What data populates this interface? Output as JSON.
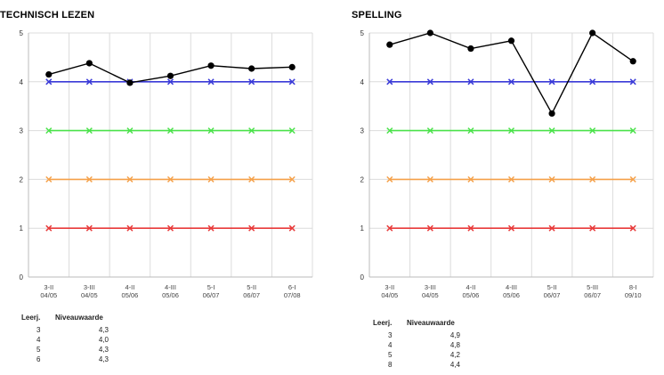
{
  "chart_data": [
    {
      "type": "line",
      "title": "TECHNISCH LEZEN",
      "categories": [
        [
          "3-II",
          "04/05"
        ],
        [
          "3-III",
          "04/05"
        ],
        [
          "4-II",
          "05/06"
        ],
        [
          "4-III",
          "05/06"
        ],
        [
          "5-I",
          "06/07"
        ],
        [
          "5-II",
          "06/07"
        ],
        [
          "6-I",
          "07/08"
        ]
      ],
      "ylim": [
        0,
        5
      ],
      "yticks": [
        0,
        1,
        2,
        3,
        4,
        5
      ],
      "grid": true,
      "series": [
        {
          "values": [
            4.15,
            4.38,
            3.98,
            4.12,
            4.33,
            4.27,
            4.3
          ],
          "color": "#000000",
          "marker": "dot"
        },
        {
          "values": [
            4,
            4,
            4,
            4,
            4,
            4,
            4
          ],
          "color": "#3a3ad8",
          "marker": "x"
        },
        {
          "values": [
            3,
            3,
            3,
            3,
            3,
            3,
            3
          ],
          "color": "#4ae24a",
          "marker": "x"
        },
        {
          "values": [
            2,
            2,
            2,
            2,
            2,
            2,
            2
          ],
          "color": "#f5a14a",
          "marker": "x"
        },
        {
          "values": [
            1,
            1,
            1,
            1,
            1,
            1,
            1
          ],
          "color": "#e83a3a",
          "marker": "x"
        }
      ],
      "table": {
        "headers": [
          "Leerj.",
          "Niveauwaarde"
        ],
        "rows": [
          [
            "3",
            "4,3"
          ],
          [
            "4",
            "4,0"
          ],
          [
            "5",
            "4,3"
          ],
          [
            "6",
            "4,3"
          ]
        ]
      }
    },
    {
      "type": "line",
      "title": "SPELLING",
      "categories": [
        [
          "3-II",
          "04/05"
        ],
        [
          "3-III",
          "04/05"
        ],
        [
          "4-II",
          "05/06"
        ],
        [
          "4-III",
          "05/06"
        ],
        [
          "5-II",
          "06/07"
        ],
        [
          "5-III",
          "06/07"
        ],
        [
          "8-I",
          "09/10"
        ]
      ],
      "ylim": [
        0,
        5
      ],
      "yticks": [
        0,
        1,
        2,
        3,
        4,
        5
      ],
      "grid": true,
      "series": [
        {
          "values": [
            4.76,
            5.0,
            4.68,
            4.84,
            3.35,
            5.0,
            4.42
          ],
          "color": "#000000",
          "marker": "dot"
        },
        {
          "values": [
            4,
            4,
            4,
            4,
            4,
            4,
            4
          ],
          "color": "#3a3ad8",
          "marker": "x"
        },
        {
          "values": [
            3,
            3,
            3,
            3,
            3,
            3,
            3
          ],
          "color": "#4ae24a",
          "marker": "x"
        },
        {
          "values": [
            2,
            2,
            2,
            2,
            2,
            2,
            2
          ],
          "color": "#f5a14a",
          "marker": "x"
        },
        {
          "values": [
            1,
            1,
            1,
            1,
            1,
            1,
            1
          ],
          "color": "#e83a3a",
          "marker": "x"
        }
      ],
      "table": {
        "headers": [
          "Leerj.",
          "Niveauwaarde"
        ],
        "rows": [
          [
            "3",
            "4,9"
          ],
          [
            "4",
            "4,8"
          ],
          [
            "5",
            "4,2"
          ],
          [
            "8",
            "4,4"
          ]
        ]
      }
    }
  ]
}
